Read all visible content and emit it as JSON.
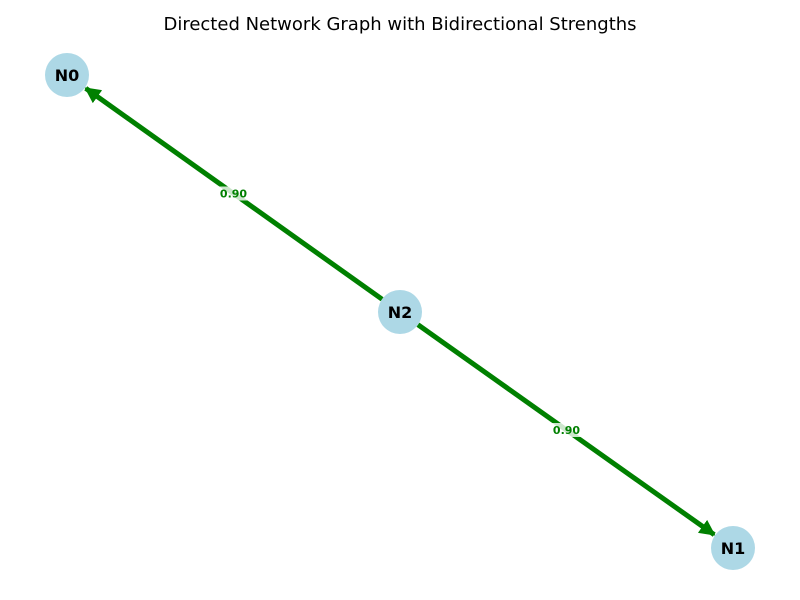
{
  "title": "Directed Network Graph with Bidirectional Strengths",
  "colors": {
    "node_fill": "#add8e6",
    "edge": "#008000",
    "edge_label": "#008000",
    "label_bg": "#ffffff"
  },
  "nodes": [
    {
      "id": "N0",
      "label": "N0"
    },
    {
      "id": "N1",
      "label": "N1"
    },
    {
      "id": "N2",
      "label": "N2"
    }
  ],
  "edges": [
    {
      "source": "N2",
      "target": "N0",
      "weight_label": "0.90"
    },
    {
      "source": "N2",
      "target": "N1",
      "weight_label": "0.90"
    }
  ]
}
